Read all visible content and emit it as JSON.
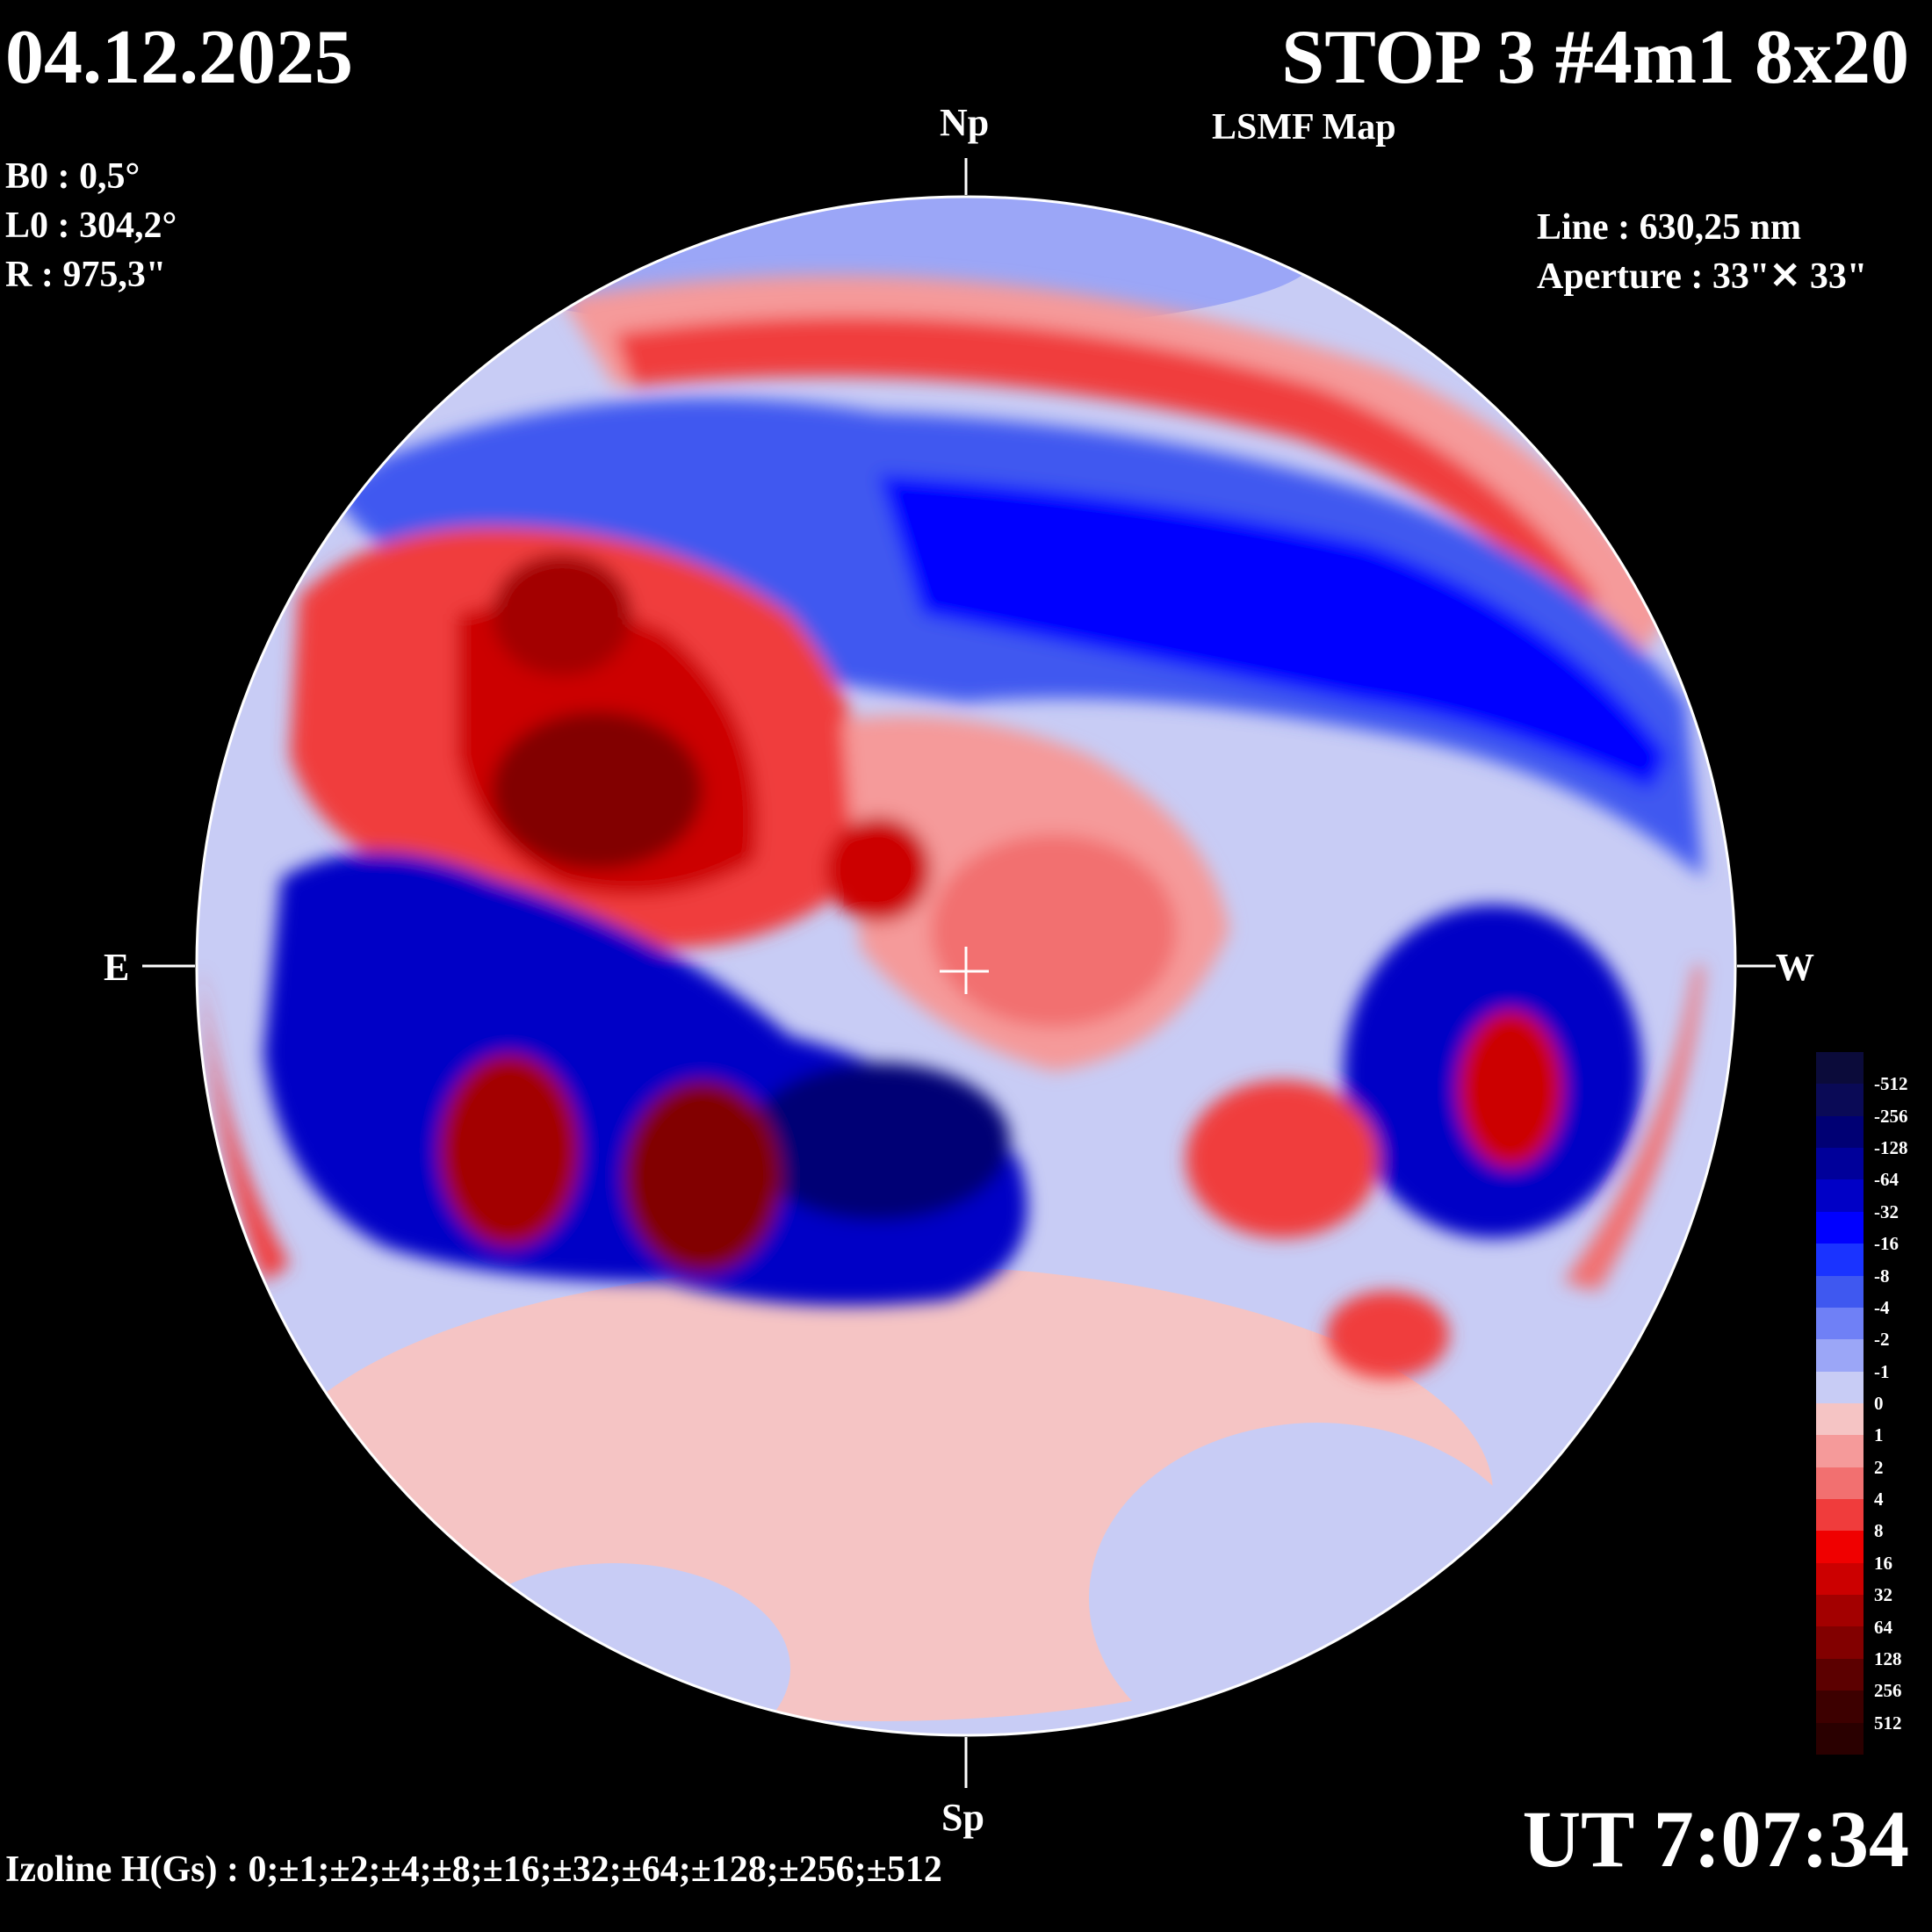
{
  "header": {
    "date": "04.12.2025",
    "title": "STOP 3 #4m1 8x20",
    "subtitle": "LSMF  Map"
  },
  "params": {
    "b0": "B0 : 0,5°",
    "l0": "L0 : 304,2°",
    "r": "R  : 975,3\""
  },
  "instrument": {
    "line": "Line :  630,25 nm",
    "aperture": "Aperture : 33\"✕ 33\""
  },
  "directions": {
    "north": "Np",
    "south": "Sp",
    "east": "E",
    "west": "W"
  },
  "time": "UT 7:07:34",
  "izoline": "Izoline H(Gs) : 0;±1;±2;±4;±8;±16;±32;±64;±128;±256;±512",
  "legend": {
    "labels": [
      "-512",
      "-256",
      "-128",
      "-64",
      "-32",
      "-16",
      "-8",
      "-4",
      "-2",
      "-1",
      "0",
      "1",
      "2",
      "4",
      "8",
      "16",
      "32",
      "64",
      "128",
      "256",
      "512"
    ],
    "colors": [
      "#0b0b3a",
      "#0a0a56",
      "#000074",
      "#00009a",
      "#0000c6",
      "#0000ff",
      "#1a33ff",
      "#3f58f0",
      "#6f80f6",
      "#9ba6f7",
      "#c8ccf5",
      "#f5c4c4",
      "#f59a9a",
      "#f27070",
      "#f03c3c",
      "#f00000",
      "#cc0000",
      "#a30000",
      "#820000",
      "#5c0000",
      "#3d0000",
      "#2a0000"
    ]
  },
  "colors": {
    "background": "#000000",
    "disk_base": "#c8ccf5",
    "contour": "#ffffff"
  }
}
